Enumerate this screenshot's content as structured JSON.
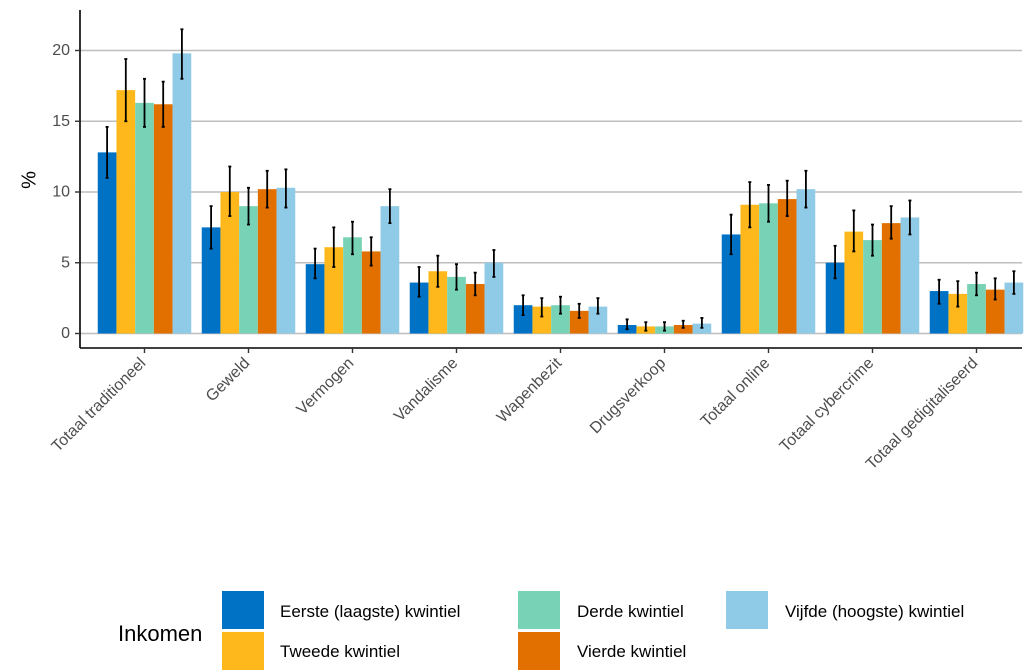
{
  "chart_data": {
    "type": "bar",
    "ylabel": "%",
    "xlabel": "",
    "ylim": [
      0,
      22
    ],
    "yticks": [
      0,
      5,
      10,
      15,
      20
    ],
    "grid": "horizontal",
    "legend_position": "bottom",
    "legend_title": "Inkomen",
    "categories": [
      "Totaal traditioneel",
      "Geweld",
      "Vermogen",
      "Vandalisme",
      "Wapenbezit",
      "Drugsverkoop",
      "Totaal online",
      "Totaal cybercrime",
      "Totaal gedigitaliseerd"
    ],
    "series": [
      {
        "name": "Eerste (laagste) kwintiel",
        "color": "#0072c6",
        "values": [
          12.8,
          7.5,
          4.9,
          3.6,
          2.0,
          0.6,
          7.0,
          5.0,
          3.0
        ],
        "ci_low": [
          11.0,
          6.0,
          3.9,
          2.6,
          1.3,
          0.3,
          5.6,
          3.9,
          2.1
        ],
        "ci_high": [
          14.6,
          9.0,
          6.0,
          4.7,
          2.7,
          1.0,
          8.4,
          6.2,
          3.8
        ]
      },
      {
        "name": "Tweede kwintiel",
        "color": "#ffb81c",
        "values": [
          17.2,
          10.0,
          6.1,
          4.4,
          1.9,
          0.5,
          9.1,
          7.2,
          2.8
        ],
        "ci_low": [
          15.0,
          8.3,
          4.7,
          3.3,
          1.2,
          0.2,
          7.5,
          5.8,
          1.9
        ],
        "ci_high": [
          19.4,
          11.8,
          7.5,
          5.5,
          2.5,
          0.8,
          10.7,
          8.7,
          3.7
        ]
      },
      {
        "name": "Derde kwintiel",
        "color": "#78d2b5",
        "values": [
          16.3,
          9.0,
          6.8,
          4.0,
          2.0,
          0.5,
          9.2,
          6.6,
          3.5
        ],
        "ci_low": [
          14.6,
          7.7,
          5.6,
          3.1,
          1.4,
          0.2,
          7.9,
          5.5,
          2.7
        ],
        "ci_high": [
          18.0,
          10.3,
          7.9,
          4.9,
          2.6,
          0.8,
          10.5,
          7.7,
          4.3
        ]
      },
      {
        "name": "Vierde kwintiel",
        "color": "#e17000",
        "values": [
          16.2,
          10.2,
          5.8,
          3.5,
          1.6,
          0.6,
          9.5,
          7.8,
          3.1
        ],
        "ci_low": [
          14.6,
          8.9,
          4.8,
          2.7,
          1.1,
          0.4,
          8.3,
          6.7,
          2.4
        ],
        "ci_high": [
          17.8,
          11.5,
          6.8,
          4.3,
          2.1,
          0.9,
          10.8,
          9.0,
          3.9
        ]
      },
      {
        "name": "Vijfde (hoogste) kwintiel",
        "color": "#8fcae7",
        "values": [
          19.8,
          10.3,
          9.0,
          5.0,
          1.9,
          0.7,
          10.2,
          8.2,
          3.6
        ],
        "ci_low": [
          18.0,
          8.9,
          7.8,
          4.0,
          1.4,
          0.4,
          8.9,
          7.0,
          2.8
        ],
        "ci_high": [
          21.5,
          11.6,
          10.2,
          5.9,
          2.5,
          1.1,
          11.5,
          9.4,
          4.4
        ]
      }
    ]
  }
}
